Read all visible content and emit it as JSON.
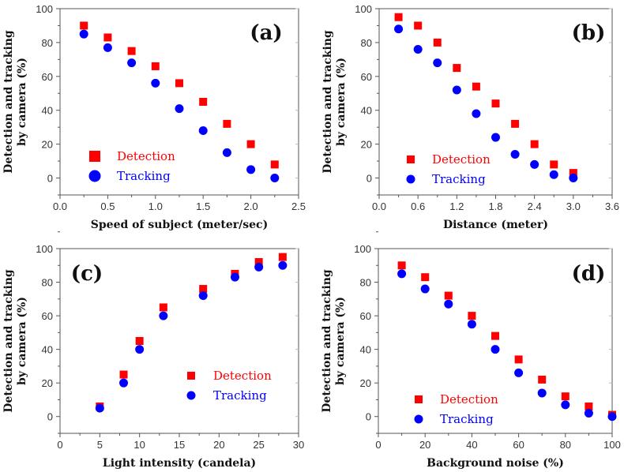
{
  "colors": {
    "detection": "#ff0000",
    "tracking": "#0000ff",
    "axis": "#333333"
  },
  "chart_data": [
    {
      "type": "scatter",
      "panel_label": "(a)",
      "xlabel": "Speed of subject (meter/sec)",
      "ylabel": [
        "Detection and tracking",
        "by camera (%)"
      ],
      "xlim": [
        0,
        2.5
      ],
      "ylim": [
        -10,
        100
      ],
      "xticks": [
        "0.0",
        "0.5",
        "1.0",
        "1.5",
        "2.0",
        "2.5"
      ],
      "xtick_values": [
        0,
        0.5,
        1,
        1.5,
        2,
        2.5
      ],
      "yticks": [
        "0",
        "20",
        "40",
        "60",
        "80",
        "100"
      ],
      "ytick_values": [
        0,
        20,
        40,
        60,
        80,
        100
      ],
      "legend_position": "bottom-left",
      "x": [
        0.25,
        0.5,
        0.75,
        1.0,
        1.25,
        1.5,
        1.75,
        2.0,
        2.25
      ],
      "series": [
        {
          "name": "Detection",
          "marker": "square",
          "values": [
            90,
            83,
            75,
            66,
            56,
            45,
            32,
            20,
            8
          ]
        },
        {
          "name": "Tracking",
          "marker": "circle",
          "values": [
            85,
            77,
            68,
            56,
            41,
            28,
            15,
            5,
            0
          ]
        }
      ]
    },
    {
      "type": "scatter",
      "panel_label": "(b)",
      "xlabel": "Distance (meter)",
      "ylabel": [
        "Detection and tracking",
        "by camera (%)"
      ],
      "xlim": [
        0,
        3.6
      ],
      "ylim": [
        -10,
        100
      ],
      "xticks": [
        "0.0",
        "0.6",
        "1.2",
        "1.8",
        "2.4",
        "3.0",
        "3.6"
      ],
      "xtick_values": [
        0,
        0.6,
        1.2,
        1.8,
        2.4,
        3.0,
        3.6
      ],
      "yticks": [
        "0",
        "20",
        "40",
        "60",
        "80",
        "100"
      ],
      "ytick_values": [
        0,
        20,
        40,
        60,
        80,
        100
      ],
      "legend_position": "bottom-left",
      "x": [
        0.3,
        0.6,
        0.9,
        1.2,
        1.5,
        1.8,
        2.1,
        2.4,
        2.7,
        3.0
      ],
      "series": [
        {
          "name": "Detection",
          "marker": "square",
          "values": [
            95,
            90,
            80,
            65,
            54,
            44,
            32,
            20,
            8,
            3
          ]
        },
        {
          "name": "Tracking",
          "marker": "circle",
          "values": [
            88,
            76,
            68,
            52,
            38,
            24,
            14,
            8,
            2,
            0
          ]
        }
      ]
    },
    {
      "type": "scatter",
      "panel_label": "(c)",
      "xlabel": "Light intensity (candela)",
      "ylabel": [
        "Detection and tracking",
        "by camera (%)"
      ],
      "xlim": [
        0,
        30
      ],
      "ylim": [
        -10,
        100
      ],
      "xticks": [
        "0",
        "5",
        "10",
        "15",
        "20",
        "25",
        "30"
      ],
      "xtick_values": [
        0,
        5,
        10,
        15,
        20,
        25,
        30
      ],
      "yticks": [
        "0",
        "20",
        "40",
        "60",
        "80",
        "100"
      ],
      "ytick_values": [
        0,
        20,
        40,
        60,
        80,
        100
      ],
      "legend_position": "center-right",
      "x": [
        5,
        8,
        10,
        13,
        18,
        22,
        25,
        28
      ],
      "series": [
        {
          "name": "Detection",
          "marker": "square",
          "values": [
            6,
            25,
            45,
            65,
            76,
            85,
            92,
            95
          ]
        },
        {
          "name": "Tracking",
          "marker": "circle",
          "values": [
            5,
            20,
            40,
            60,
            72,
            83,
            89,
            90
          ]
        }
      ]
    },
    {
      "type": "scatter",
      "panel_label": "(d)",
      "xlabel": "Background noise (%)",
      "ylabel": [
        "Detection and tracking",
        "by camera (%)"
      ],
      "xlim": [
        0,
        100
      ],
      "ylim": [
        -10,
        100
      ],
      "xticks": [
        "0",
        "20",
        "40",
        "60",
        "80",
        "100"
      ],
      "xtick_values": [
        0,
        20,
        40,
        60,
        80,
        100
      ],
      "yticks": [
        "0",
        "20",
        "40",
        "60",
        "80",
        "100"
      ],
      "ytick_values": [
        0,
        20,
        40,
        60,
        80,
        100
      ],
      "legend_position": "bottom-left",
      "x": [
        10,
        20,
        30,
        40,
        50,
        60,
        70,
        80,
        90,
        100
      ],
      "series": [
        {
          "name": "Detection",
          "marker": "square",
          "values": [
            90,
            83,
            72,
            60,
            48,
            34,
            22,
            12,
            6,
            1
          ]
        },
        {
          "name": "Tracking",
          "marker": "circle",
          "values": [
            85,
            76,
            67,
            55,
            40,
            26,
            14,
            7,
            2,
            0
          ]
        }
      ]
    }
  ]
}
